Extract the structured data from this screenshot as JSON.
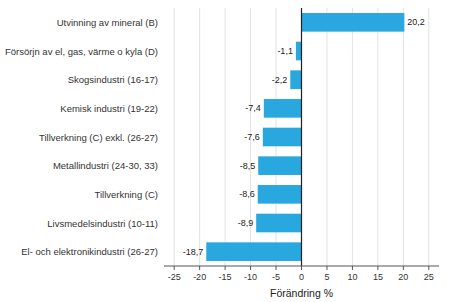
{
  "chart_data": {
    "type": "bar",
    "orientation": "horizontal",
    "xlabel": "Förändring %",
    "categories": [
      "El- och elektronikindustri (26-27)",
      "Livsmedelsindustri (10-11)",
      "Tillverkning (C)",
      "Metallindustri (24-30, 33)",
      "Tillverkning (C) exkl. (26-27)",
      "Kemisk industri (19-22)",
      "Skogsindustri (16-17)",
      "Försörjn av el, gas, värme o kyla (D)",
      "Utvinning av mineral (B)"
    ],
    "values": [
      -18.7,
      -8.9,
      -8.6,
      -8.5,
      -7.6,
      -7.4,
      -2.2,
      -1.1,
      20.2
    ],
    "value_labels": [
      "-18,7",
      "-8,9",
      "-8,6",
      "-8,5",
      "-7,6",
      "-7,4",
      "-2,2",
      "-1,1",
      "20,2"
    ],
    "data_labels": true,
    "color": "#29a8e0",
    "xlim": [
      -27,
      27
    ],
    "xticks": [
      -25,
      -20,
      -15,
      -10,
      -5,
      0,
      5,
      10,
      15,
      20,
      25
    ],
    "grid": true
  }
}
